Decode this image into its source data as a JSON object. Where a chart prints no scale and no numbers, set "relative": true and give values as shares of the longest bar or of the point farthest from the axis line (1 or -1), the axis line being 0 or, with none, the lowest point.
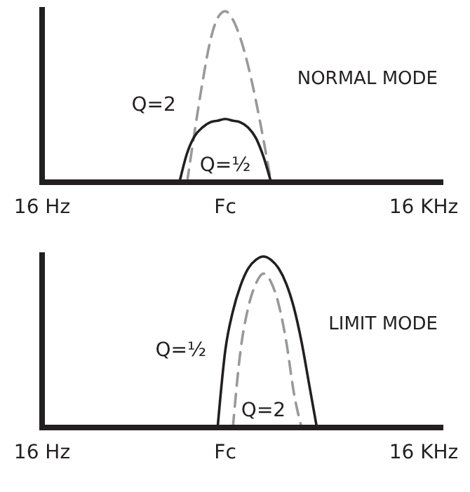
{
  "chart_data": [
    {
      "type": "line",
      "title": "NORMAL MODE",
      "relative": true,
      "legend": false,
      "categories": [
        "16 Hz",
        null,
        null,
        null,
        null,
        null,
        null,
        null,
        null,
        null,
        null,
        null,
        null,
        null,
        null,
        null,
        null,
        null,
        null,
        null,
        null,
        null,
        null,
        null,
        "Fc",
        null,
        null,
        null,
        null,
        null,
        null,
        null,
        null,
        null,
        null,
        null,
        null,
        null,
        null,
        null,
        null,
        null,
        null,
        null,
        null,
        null,
        null,
        null,
        null,
        null,
        "16 KHz"
      ],
      "series": [
        {
          "name": "Q=2",
          "color": "#999999",
          "line_style": "dashed",
          "values": [
            null,
            null,
            null,
            null,
            null,
            null,
            null,
            null,
            null,
            null,
            null,
            null,
            null,
            null,
            null,
            null,
            null,
            null,
            null,
            0,
            0.3,
            0.58,
            0.82,
            0.96,
            1,
            0.95,
            0.84,
            0.68,
            0.48,
            0.25,
            0,
            null,
            null,
            null,
            null,
            null,
            null,
            null,
            null,
            null,
            null,
            null,
            null,
            null,
            null,
            null,
            null,
            null,
            null,
            null,
            null
          ]
        },
        {
          "name": "Q=½",
          "color": "#231f20",
          "line_style": "solid",
          "values": [
            null,
            null,
            null,
            null,
            null,
            null,
            null,
            null,
            null,
            null,
            null,
            null,
            null,
            null,
            null,
            null,
            null,
            null,
            0,
            0.17,
            0.27,
            0.32,
            0.35,
            0.36,
            0.37,
            0.36,
            0.35,
            0.32,
            0.26,
            0.15,
            0,
            null,
            null,
            null,
            null,
            null,
            null,
            null,
            null,
            null,
            null,
            null,
            null,
            null,
            null,
            null,
            null,
            null,
            null,
            null,
            null
          ]
        }
      ]
    },
    {
      "type": "line",
      "title": "LIMIT MODE",
      "relative": true,
      "legend": false,
      "categories": [
        "16 Hz",
        null,
        null,
        null,
        null,
        null,
        null,
        null,
        null,
        null,
        null,
        null,
        null,
        null,
        null,
        null,
        null,
        null,
        null,
        null,
        null,
        null,
        null,
        null,
        "Fc",
        null,
        null,
        null,
        null,
        null,
        null,
        null,
        null,
        null,
        null,
        null,
        null,
        null,
        null,
        null,
        null,
        null,
        null,
        null,
        null,
        null,
        null,
        null,
        null,
        null,
        "16 KHz"
      ],
      "series": [
        {
          "name": "Q=½",
          "color": "#231f20",
          "line_style": "solid",
          "values": [
            null,
            null,
            null,
            null,
            null,
            null,
            null,
            null,
            null,
            null,
            null,
            null,
            null,
            null,
            null,
            null,
            null,
            null,
            null,
            null,
            null,
            null,
            null,
            0,
            0.45,
            0.68,
            0.83,
            0.93,
            0.98,
            1,
            0.98,
            0.93,
            0.84,
            0.7,
            0.5,
            0.25,
            0,
            null,
            null,
            null,
            null,
            null,
            null,
            null,
            null,
            null,
            null,
            null,
            null,
            null,
            null
          ]
        },
        {
          "name": "Q=2",
          "color": "#999999",
          "line_style": "dashed",
          "values": [
            null,
            null,
            null,
            null,
            null,
            null,
            null,
            null,
            null,
            null,
            null,
            null,
            null,
            null,
            null,
            null,
            null,
            null,
            null,
            null,
            null,
            null,
            null,
            null,
            null,
            0,
            0.45,
            0.7,
            0.84,
            0.9,
            0.85,
            0.72,
            0.5,
            0.2,
            0,
            null,
            null,
            null,
            null,
            null,
            null,
            null,
            null,
            null,
            null,
            null,
            null,
            null,
            null,
            null,
            null
          ]
        }
      ]
    }
  ]
}
